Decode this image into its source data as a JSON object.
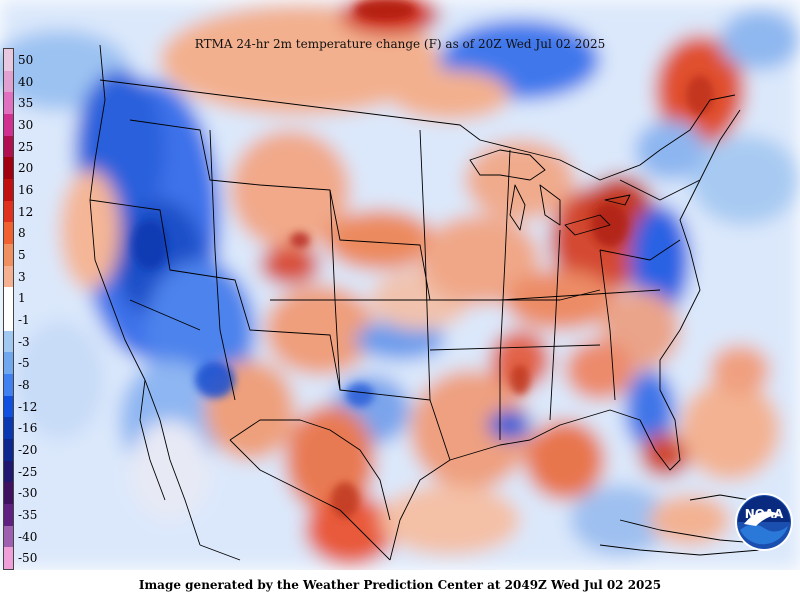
{
  "title": "RTMA 24-hr 2m temperature change (F) as of 20Z Wed Jul 02 2025",
  "footer": "Image generated by the Weather Prediction Center at 2049Z Wed Jul 02 2025",
  "logo_text": "NOAA",
  "legend": [
    {
      "label": "50",
      "color": "#e8c8e0"
    },
    {
      "label": "40",
      "color": "#e0a0d0"
    },
    {
      "label": "35",
      "color": "#e070c0"
    },
    {
      "label": "30",
      "color": "#d03090"
    },
    {
      "label": "25",
      "color": "#b01050"
    },
    {
      "label": "20",
      "color": "#a00010"
    },
    {
      "label": "16",
      "color": "#c01010"
    },
    {
      "label": "12",
      "color": "#e03020"
    },
    {
      "label": "8",
      "color": "#f06030"
    },
    {
      "label": "5",
      "color": "#f09060"
    },
    {
      "label": "3",
      "color": "#f4b090"
    },
    {
      "label": "1",
      "color": "#ffffff"
    },
    {
      "label": "-1",
      "color": "#ffffff"
    },
    {
      "label": "-3",
      "color": "#a0c8f0"
    },
    {
      "label": "-5",
      "color": "#70a8f0"
    },
    {
      "label": "-8",
      "color": "#4080f0"
    },
    {
      "label": "-12",
      "color": "#1050e0"
    },
    {
      "label": "-16",
      "color": "#0a38b0"
    },
    {
      "label": "-20",
      "color": "#0a2890"
    },
    {
      "label": "-25",
      "color": "#201870"
    },
    {
      "label": "-30",
      "color": "#401060"
    },
    {
      "label": "-35",
      "color": "#602080"
    },
    {
      "label": "-40",
      "color": "#a060b0"
    },
    {
      "label": "-50",
      "color": "#f0a0d8"
    }
  ]
}
